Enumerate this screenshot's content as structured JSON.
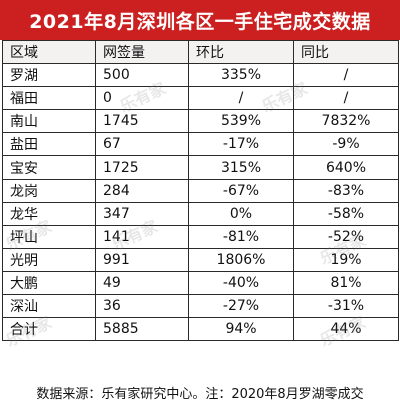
{
  "title": "2021年8月深圳各区一手住宅成交数据",
  "headers": [
    "区域",
    "网签量",
    "环比",
    "同比"
  ],
  "rows": [
    [
      "罗湖",
      "500",
      "335%",
      "/"
    ],
    [
      "福田",
      "0",
      "/",
      "/"
    ],
    [
      "南山",
      "1745",
      "539%",
      "7832%"
    ],
    [
      "盐田",
      "67",
      "-17%",
      "-9%"
    ],
    [
      "宝安",
      "1725",
      "315%",
      "640%"
    ],
    [
      "龙岗",
      "284",
      "-67%",
      "-83%"
    ],
    [
      "龙华",
      "347",
      "0%",
      "-58%"
    ],
    [
      "坪山",
      "141",
      "-81%",
      "-52%"
    ],
    [
      "光明",
      "991",
      "1806%",
      "19%"
    ],
    [
      "大鹏",
      "49",
      "-40%",
      "81%"
    ],
    [
      "深汕",
      "36",
      "-27%",
      "-31%"
    ],
    [
      "合计",
      "5885",
      "94%",
      "44%"
    ]
  ],
  "footer": "数据来源：乐有家研究中心。注：2020年8月罗湖零成交",
  "watermark_text": "乐有家",
  "colors": {
    "title_bg": "#cc1f1f",
    "title_fg": "#ffffff",
    "border": "#2a2a2a"
  }
}
